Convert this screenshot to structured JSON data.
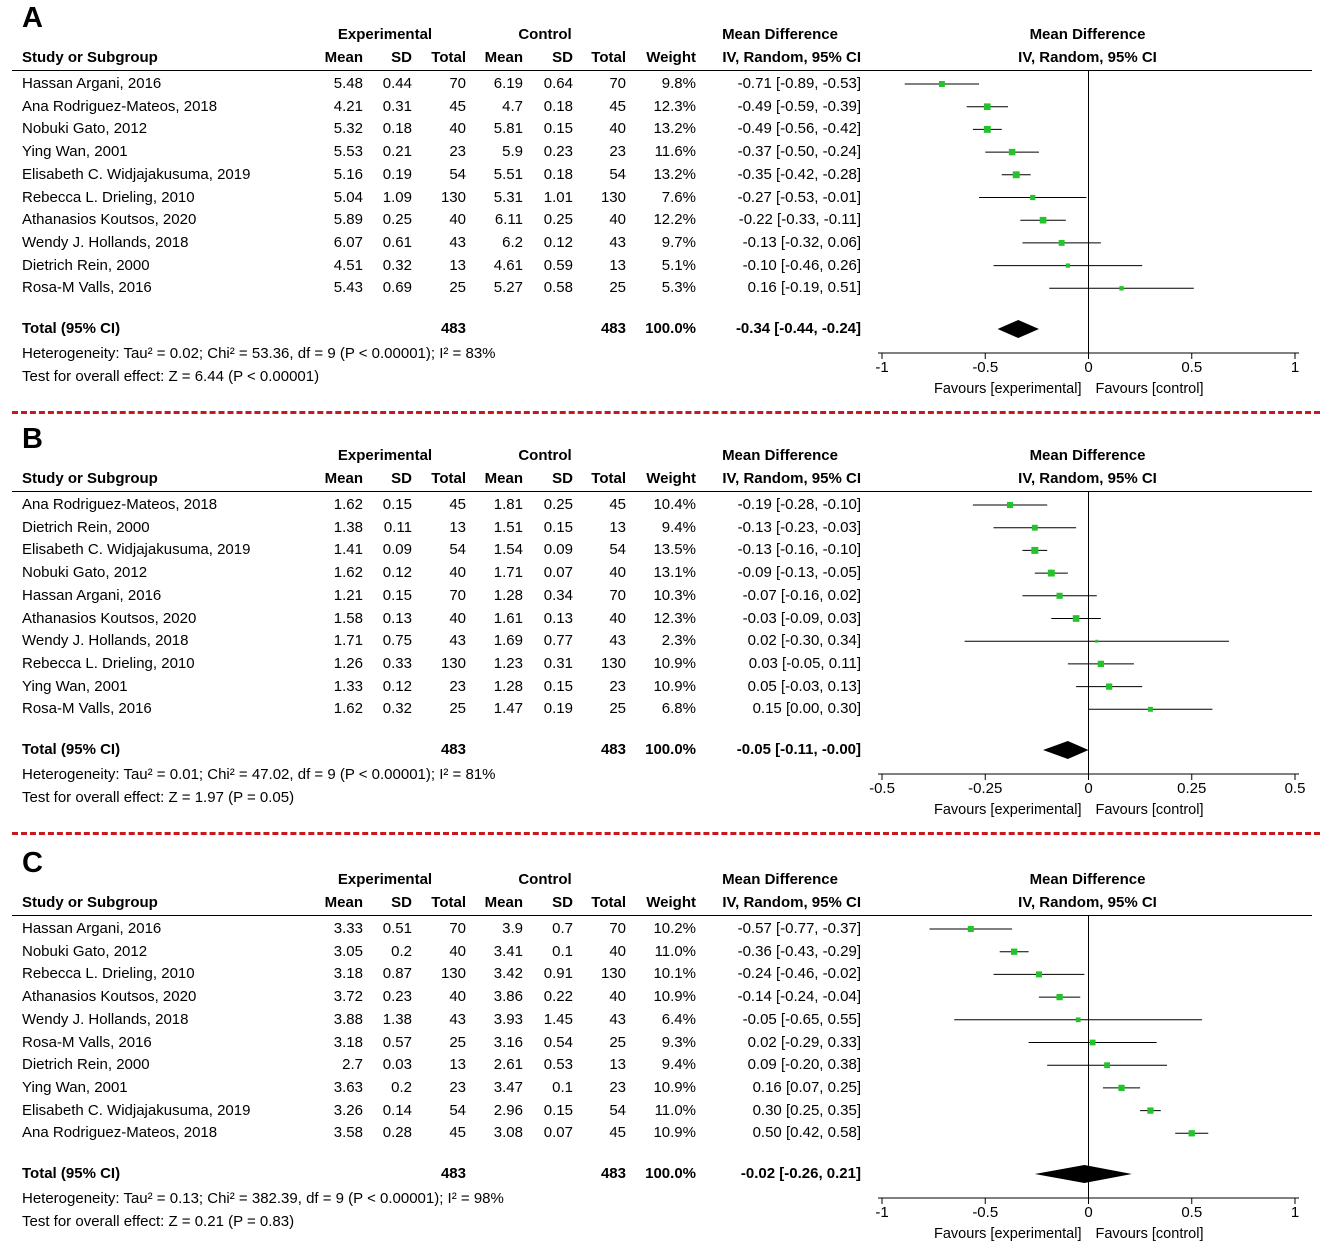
{
  "header": {
    "experimental": "Experimental",
    "control": "Control",
    "md_title": "Mean Difference",
    "study_or_subgroup": "Study or Subgroup",
    "mean": "Mean",
    "sd": "SD",
    "total": "Total",
    "weight": "Weight",
    "md_method": "IV, Random, 95% CI",
    "forest_title": "Mean Difference",
    "forest_method": "IV, Random, 95% CI",
    "favours_experimental": "Favours [experimental]",
    "favours_control": "Favours [control]"
  },
  "colors": {
    "marker": "#22c42a",
    "divider": "#c8181e",
    "diamond": "#000000"
  },
  "chart_data": [
    {
      "type": "table",
      "panel_label": "A",
      "studies": [
        {
          "study": "Hassan Argani, 2016",
          "e_mean": "5.48",
          "e_sd": "0.44",
          "e_total": "70",
          "c_mean": "6.19",
          "c_sd": "0.64",
          "c_total": "70",
          "weight": "9.8%",
          "ci": "-0.71 [-0.89, -0.53]",
          "md": -0.71,
          "lo": -0.89,
          "hi": -0.53,
          "w": 9.8
        },
        {
          "study": "Ana Rodriguez-Mateos, 2018",
          "e_mean": "4.21",
          "e_sd": "0.31",
          "e_total": "45",
          "c_mean": "4.7",
          "c_sd": "0.18",
          "c_total": "45",
          "weight": "12.3%",
          "ci": "-0.49 [-0.59, -0.39]",
          "md": -0.49,
          "lo": -0.59,
          "hi": -0.39,
          "w": 12.3
        },
        {
          "study": "Nobuki Gato, 2012",
          "e_mean": "5.32",
          "e_sd": "0.18",
          "e_total": "40",
          "c_mean": "5.81",
          "c_sd": "0.15",
          "c_total": "40",
          "weight": "13.2%",
          "ci": "-0.49 [-0.56, -0.42]",
          "md": -0.49,
          "lo": -0.56,
          "hi": -0.42,
          "w": 13.2
        },
        {
          "study": "Ying Wan, 2001",
          "e_mean": "5.53",
          "e_sd": "0.21",
          "e_total": "23",
          "c_mean": "5.9",
          "c_sd": "0.23",
          "c_total": "23",
          "weight": "11.6%",
          "ci": "-0.37 [-0.50, -0.24]",
          "md": -0.37,
          "lo": -0.5,
          "hi": -0.24,
          "w": 11.6
        },
        {
          "study": "Elisabeth C. Widjajakusuma, 2019",
          "e_mean": "5.16",
          "e_sd": "0.19",
          "e_total": "54",
          "c_mean": "5.51",
          "c_sd": "0.18",
          "c_total": "54",
          "weight": "13.2%",
          "ci": "-0.35 [-0.42, -0.28]",
          "md": -0.35,
          "lo": -0.42,
          "hi": -0.28,
          "w": 13.2
        },
        {
          "study": "Rebecca L. Drieling, 2010",
          "e_mean": "5.04",
          "e_sd": "1.09",
          "e_total": "130",
          "c_mean": "5.31",
          "c_sd": "1.01",
          "c_total": "130",
          "weight": "7.6%",
          "ci": "-0.27 [-0.53, -0.01]",
          "md": -0.27,
          "lo": -0.53,
          "hi": -0.01,
          "w": 7.6
        },
        {
          "study": "Athanasios Koutsos, 2020",
          "e_mean": "5.89",
          "e_sd": "0.25",
          "e_total": "40",
          "c_mean": "6.11",
          "c_sd": "0.25",
          "c_total": "40",
          "weight": "12.2%",
          "ci": "-0.22 [-0.33, -0.11]",
          "md": -0.22,
          "lo": -0.33,
          "hi": -0.11,
          "w": 12.2
        },
        {
          "study": "Wendy J. Hollands, 2018",
          "e_mean": "6.07",
          "e_sd": "0.61",
          "e_total": "43",
          "c_mean": "6.2",
          "c_sd": "0.12",
          "c_total": "43",
          "weight": "9.7%",
          "ci": "-0.13 [-0.32, 0.06]",
          "md": -0.13,
          "lo": -0.32,
          "hi": 0.06,
          "w": 9.7
        },
        {
          "study": "Dietrich Rein, 2000",
          "e_mean": "4.51",
          "e_sd": "0.32",
          "e_total": "13",
          "c_mean": "4.61",
          "c_sd": "0.59",
          "c_total": "13",
          "weight": "5.1%",
          "ci": "-0.10 [-0.46, 0.26]",
          "md": -0.1,
          "lo": -0.46,
          "hi": 0.26,
          "w": 5.1
        },
        {
          "study": "Rosa-M Valls, 2016",
          "e_mean": "5.43",
          "e_sd": "0.69",
          "e_total": "25",
          "c_mean": "5.27",
          "c_sd": "0.58",
          "c_total": "25",
          "weight": "5.3%",
          "ci": "0.16 [-0.19, 0.51]",
          "md": 0.16,
          "lo": -0.19,
          "hi": 0.51,
          "w": 5.3
        }
      ],
      "total": {
        "label": "Total (95% CI)",
        "e_total": "483",
        "c_total": "483",
        "weight": "100.0%",
        "ci": "-0.34 [-0.44, -0.24]",
        "md": -0.34,
        "lo": -0.44,
        "hi": -0.24
      },
      "heterogeneity": "Heterogeneity: Tau² = 0.02; Chi² = 53.36, df = 9 (P < 0.00001); I² = 83%",
      "overall_effect": "Test for overall effect: Z = 6.44 (P < 0.00001)",
      "axis": {
        "min": -1,
        "max": 1,
        "ticks": [
          -1,
          -0.5,
          0,
          0.5,
          1
        ],
        "tick_labels": [
          "-1",
          "-0.5",
          "0",
          "0.5",
          "1"
        ]
      }
    },
    {
      "type": "table",
      "panel_label": "B",
      "studies": [
        {
          "study": "Ana Rodriguez-Mateos, 2018",
          "e_mean": "1.62",
          "e_sd": "0.15",
          "e_total": "45",
          "c_mean": "1.81",
          "c_sd": "0.25",
          "c_total": "45",
          "weight": "10.4%",
          "ci": "-0.19 [-0.28, -0.10]",
          "md": -0.19,
          "lo": -0.28,
          "hi": -0.1,
          "w": 10.4
        },
        {
          "study": "Dietrich Rein, 2000",
          "e_mean": "1.38",
          "e_sd": "0.11",
          "e_total": "13",
          "c_mean": "1.51",
          "c_sd": "0.15",
          "c_total": "13",
          "weight": "9.4%",
          "ci": "-0.13 [-0.23, -0.03]",
          "md": -0.13,
          "lo": -0.23,
          "hi": -0.03,
          "w": 9.4
        },
        {
          "study": "Elisabeth C. Widjajakusuma, 2019",
          "e_mean": "1.41",
          "e_sd": "0.09",
          "e_total": "54",
          "c_mean": "1.54",
          "c_sd": "0.09",
          "c_total": "54",
          "weight": "13.5%",
          "ci": "-0.13 [-0.16, -0.10]",
          "md": -0.13,
          "lo": -0.16,
          "hi": -0.1,
          "w": 13.5
        },
        {
          "study": "Nobuki Gato, 2012",
          "e_mean": "1.62",
          "e_sd": "0.12",
          "e_total": "40",
          "c_mean": "1.71",
          "c_sd": "0.07",
          "c_total": "40",
          "weight": "13.1%",
          "ci": "-0.09 [-0.13, -0.05]",
          "md": -0.09,
          "lo": -0.13,
          "hi": -0.05,
          "w": 13.1
        },
        {
          "study": "Hassan Argani, 2016",
          "e_mean": "1.21",
          "e_sd": "0.15",
          "e_total": "70",
          "c_mean": "1.28",
          "c_sd": "0.34",
          "c_total": "70",
          "weight": "10.3%",
          "ci": "-0.07 [-0.16, 0.02]",
          "md": -0.07,
          "lo": -0.16,
          "hi": 0.02,
          "w": 10.3
        },
        {
          "study": "Athanasios Koutsos, 2020",
          "e_mean": "1.58",
          "e_sd": "0.13",
          "e_total": "40",
          "c_mean": "1.61",
          "c_sd": "0.13",
          "c_total": "40",
          "weight": "12.3%",
          "ci": "-0.03 [-0.09, 0.03]",
          "md": -0.03,
          "lo": -0.09,
          "hi": 0.03,
          "w": 12.3
        },
        {
          "study": "Wendy J. Hollands, 2018",
          "e_mean": "1.71",
          "e_sd": "0.75",
          "e_total": "43",
          "c_mean": "1.69",
          "c_sd": "0.77",
          "c_total": "43",
          "weight": "2.3%",
          "ci": "0.02 [-0.30, 0.34]",
          "md": 0.02,
          "lo": -0.3,
          "hi": 0.34,
          "w": 2.3
        },
        {
          "study": "Rebecca L. Drieling, 2010",
          "e_mean": "1.26",
          "e_sd": "0.33",
          "e_total": "130",
          "c_mean": "1.23",
          "c_sd": "0.31",
          "c_total": "130",
          "weight": "10.9%",
          "ci": "0.03 [-0.05, 0.11]",
          "md": 0.03,
          "lo": -0.05,
          "hi": 0.11,
          "w": 10.9
        },
        {
          "study": "Ying Wan, 2001",
          "e_mean": "1.33",
          "e_sd": "0.12",
          "e_total": "23",
          "c_mean": "1.28",
          "c_sd": "0.15",
          "c_total": "23",
          "weight": "10.9%",
          "ci": "0.05 [-0.03, 0.13]",
          "md": 0.05,
          "lo": -0.03,
          "hi": 0.13,
          "w": 10.9
        },
        {
          "study": "Rosa-M Valls, 2016",
          "e_mean": "1.62",
          "e_sd": "0.32",
          "e_total": "25",
          "c_mean": "1.47",
          "c_sd": "0.19",
          "c_total": "25",
          "weight": "6.8%",
          "ci": "0.15 [0.00, 0.30]",
          "md": 0.15,
          "lo": 0.0,
          "hi": 0.3,
          "w": 6.8
        }
      ],
      "total": {
        "label": "Total (95% CI)",
        "e_total": "483",
        "c_total": "483",
        "weight": "100.0%",
        "ci": "-0.05 [-0.11, -0.00]",
        "md": -0.05,
        "lo": -0.11,
        "hi": -0.0
      },
      "heterogeneity": "Heterogeneity: Tau² = 0.01; Chi² = 47.02, df = 9 (P < 0.00001); I² = 81%",
      "overall_effect": "Test for overall effect: Z = 1.97 (P = 0.05)",
      "axis": {
        "min": -0.5,
        "max": 0.5,
        "ticks": [
          -0.5,
          -0.25,
          0,
          0.25,
          0.5
        ],
        "tick_labels": [
          "-0.5",
          "-0.25",
          "0",
          "0.25",
          "0.5"
        ]
      }
    },
    {
      "type": "table",
      "panel_label": "C",
      "studies": [
        {
          "study": "Hassan Argani, 2016",
          "e_mean": "3.33",
          "e_sd": "0.51",
          "e_total": "70",
          "c_mean": "3.9",
          "c_sd": "0.7",
          "c_total": "70",
          "weight": "10.2%",
          "ci": "-0.57 [-0.77, -0.37]",
          "md": -0.57,
          "lo": -0.77,
          "hi": -0.37,
          "w": 10.2
        },
        {
          "study": "Nobuki Gato, 2012",
          "e_mean": "3.05",
          "e_sd": "0.2",
          "e_total": "40",
          "c_mean": "3.41",
          "c_sd": "0.1",
          "c_total": "40",
          "weight": "11.0%",
          "ci": "-0.36 [-0.43, -0.29]",
          "md": -0.36,
          "lo": -0.43,
          "hi": -0.29,
          "w": 11.0
        },
        {
          "study": "Rebecca L. Drieling, 2010",
          "e_mean": "3.18",
          "e_sd": "0.87",
          "e_total": "130",
          "c_mean": "3.42",
          "c_sd": "0.91",
          "c_total": "130",
          "weight": "10.1%",
          "ci": "-0.24 [-0.46, -0.02]",
          "md": -0.24,
          "lo": -0.46,
          "hi": -0.02,
          "w": 10.1
        },
        {
          "study": "Athanasios Koutsos, 2020",
          "e_mean": "3.72",
          "e_sd": "0.23",
          "e_total": "40",
          "c_mean": "3.86",
          "c_sd": "0.22",
          "c_total": "40",
          "weight": "10.9%",
          "ci": "-0.14 [-0.24, -0.04]",
          "md": -0.14,
          "lo": -0.24,
          "hi": -0.04,
          "w": 10.9
        },
        {
          "study": "Wendy J. Hollands, 2018",
          "e_mean": "3.88",
          "e_sd": "1.38",
          "e_total": "43",
          "c_mean": "3.93",
          "c_sd": "1.45",
          "c_total": "43",
          "weight": "6.4%",
          "ci": "-0.05 [-0.65, 0.55]",
          "md": -0.05,
          "lo": -0.65,
          "hi": 0.55,
          "w": 6.4
        },
        {
          "study": "Rosa-M Valls, 2016",
          "e_mean": "3.18",
          "e_sd": "0.57",
          "e_total": "25",
          "c_mean": "3.16",
          "c_sd": "0.54",
          "c_total": "25",
          "weight": "9.3%",
          "ci": "0.02 [-0.29, 0.33]",
          "md": 0.02,
          "lo": -0.29,
          "hi": 0.33,
          "w": 9.3
        },
        {
          "study": "Dietrich Rein, 2000",
          "e_mean": "2.7",
          "e_sd": "0.03",
          "e_total": "13",
          "c_mean": "2.61",
          "c_sd": "0.53",
          "c_total": "13",
          "weight": "9.4%",
          "ci": "0.09 [-0.20, 0.38]",
          "md": 0.09,
          "lo": -0.2,
          "hi": 0.38,
          "w": 9.4
        },
        {
          "study": "Ying Wan, 2001",
          "e_mean": "3.63",
          "e_sd": "0.2",
          "e_total": "23",
          "c_mean": "3.47",
          "c_sd": "0.1",
          "c_total": "23",
          "weight": "10.9%",
          "ci": "0.16 [0.07, 0.25]",
          "md": 0.16,
          "lo": 0.07,
          "hi": 0.25,
          "w": 10.9
        },
        {
          "study": "Elisabeth C. Widjajakusuma, 2019",
          "e_mean": "3.26",
          "e_sd": "0.14",
          "e_total": "54",
          "c_mean": "2.96",
          "c_sd": "0.15",
          "c_total": "54",
          "weight": "11.0%",
          "ci": "0.30 [0.25, 0.35]",
          "md": 0.3,
          "lo": 0.25,
          "hi": 0.35,
          "w": 11.0
        },
        {
          "study": "Ana Rodriguez-Mateos, 2018",
          "e_mean": "3.58",
          "e_sd": "0.28",
          "e_total": "45",
          "c_mean": "3.08",
          "c_sd": "0.07",
          "c_total": "45",
          "weight": "10.9%",
          "ci": "0.50 [0.42, 0.58]",
          "md": 0.5,
          "lo": 0.42,
          "hi": 0.58,
          "w": 10.9
        }
      ],
      "total": {
        "label": "Total (95% CI)",
        "e_total": "483",
        "c_total": "483",
        "weight": "100.0%",
        "ci": "-0.02 [-0.26, 0.21]",
        "md": -0.02,
        "lo": -0.26,
        "hi": 0.21
      },
      "heterogeneity": "Heterogeneity: Tau² = 0.13; Chi² = 382.39, df = 9 (P < 0.00001); I² = 98%",
      "overall_effect": "Test for overall effect: Z = 0.21 (P = 0.83)",
      "axis": {
        "min": -1,
        "max": 1,
        "ticks": [
          -1,
          -0.5,
          0,
          0.5,
          1
        ],
        "tick_labels": [
          "-1",
          "-0.5",
          "0",
          "0.5",
          "1"
        ]
      }
    }
  ]
}
